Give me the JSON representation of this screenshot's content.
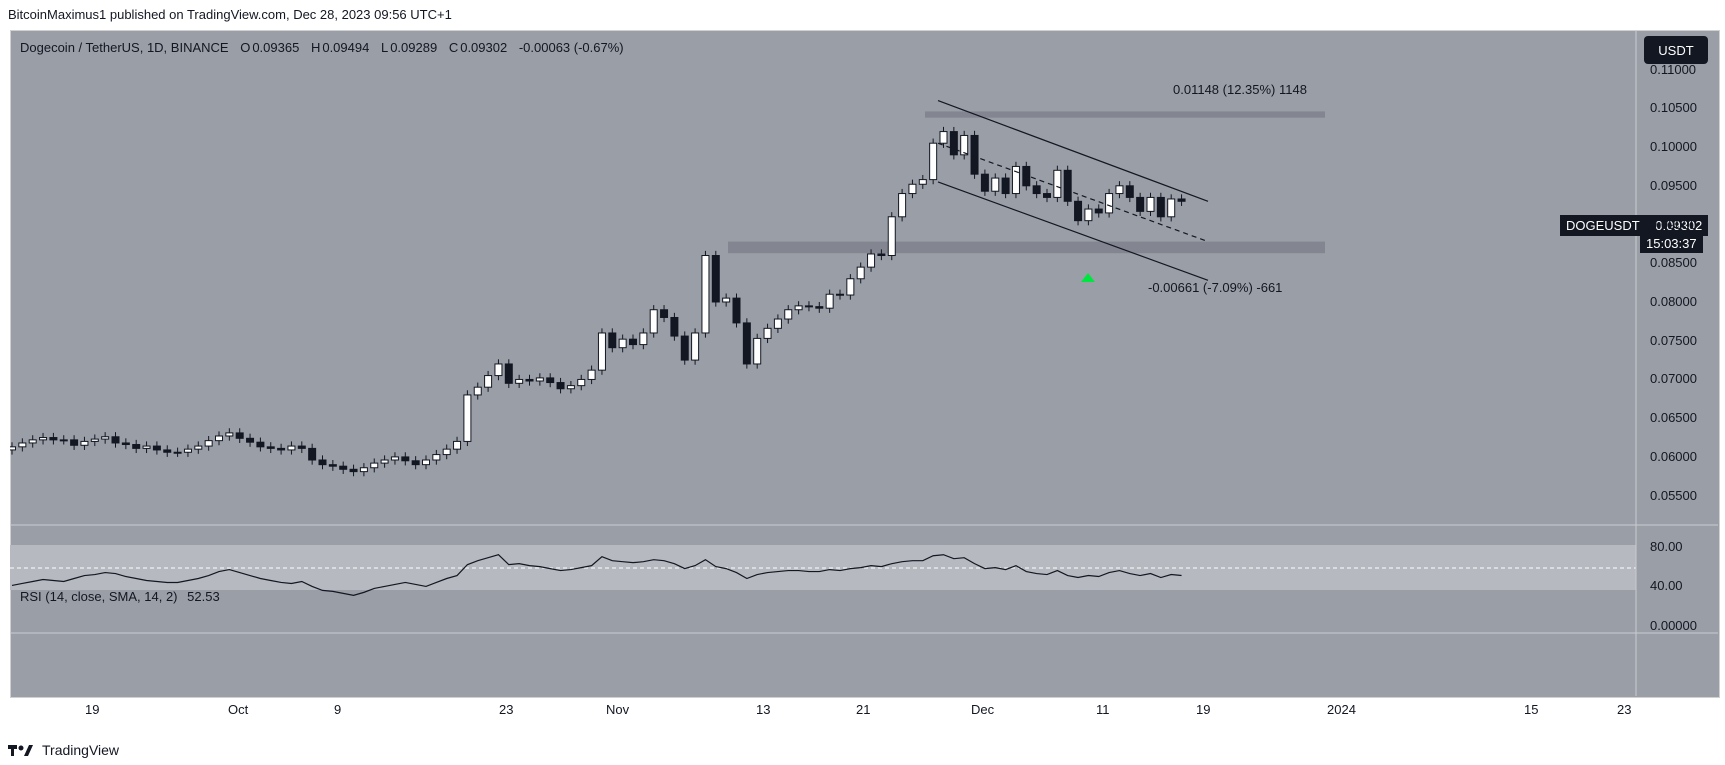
{
  "publisher_line": "BitcoinMaximus1 published on TradingView.com, Dec 28, 2023 09:56 UTC+1",
  "legend": {
    "title": "Dogecoin / TetherUS, 1D, BINANCE",
    "o_label": "O",
    "o": "0.09365",
    "h_label": "H",
    "h": "0.09494",
    "l_label": "L",
    "l": "0.09289",
    "c_label": "C",
    "c": "0.09302",
    "change": "-0.00063 (-0.67%)"
  },
  "currency_button": "USDT",
  "price_tag": {
    "symbol": "DOGEUSDT",
    "price": "0.09302",
    "countdown": "15:03:37"
  },
  "rsi_legend": {
    "label": "RSI (14, close, SMA, 14, 2)",
    "value": "52.53"
  },
  "footer": {
    "brand": "TradingView"
  },
  "annotations": {
    "upper_measure": "0.01148 (12.35%) 1148",
    "lower_measure": "-0.00661 (-7.09%) -661"
  },
  "colors": {
    "background": "#9a9ea6",
    "up_candle": "#ffffff",
    "down_candle": "#131722",
    "zone": "#838690",
    "arrow": "#00e640",
    "rsi_band": "#b6b9bf"
  },
  "chart_data": [
    {
      "type": "candlestick",
      "title": "Dogecoin / TetherUS, 1D, BINANCE",
      "x_ticks": [
        "19",
        "Oct",
        "9",
        "23",
        "Nov",
        "13",
        "21",
        "Dec",
        "11",
        "19",
        "2024",
        "15",
        "23"
      ],
      "y_ticks": [
        "0.11000",
        "0.10500",
        "0.10000",
        "0.09500",
        "0.09000",
        "0.08500",
        "0.08000",
        "0.07500",
        "0.07000",
        "0.06500",
        "0.06000",
        "0.05500"
      ],
      "y_range": [
        0.0525,
        0.1115
      ],
      "close": [
        0.0613,
        0.0618,
        0.0622,
        0.0625,
        0.0622,
        0.0622,
        0.0615,
        0.062,
        0.0623,
        0.0626,
        0.0618,
        0.0616,
        0.0611,
        0.0614,
        0.0609,
        0.0606,
        0.0606,
        0.061,
        0.0614,
        0.0621,
        0.0627,
        0.0631,
        0.0624,
        0.0619,
        0.0613,
        0.0611,
        0.0609,
        0.0614,
        0.0611,
        0.0596,
        0.059,
        0.0588,
        0.0584,
        0.0581,
        0.0586,
        0.0592,
        0.0596,
        0.06,
        0.0595,
        0.059,
        0.0596,
        0.0603,
        0.061,
        0.062,
        0.068,
        0.069,
        0.0705,
        0.072,
        0.0695,
        0.07,
        0.0698,
        0.0702,
        0.0696,
        0.0688,
        0.0692,
        0.07,
        0.0712,
        0.076,
        0.0741,
        0.0752,
        0.0745,
        0.076,
        0.079,
        0.078,
        0.0756,
        0.0725,
        0.076,
        0.086,
        0.08,
        0.0805,
        0.0773,
        0.072,
        0.0753,
        0.0766,
        0.0778,
        0.079,
        0.0795,
        0.0794,
        0.0792,
        0.081,
        0.0809,
        0.083,
        0.0845,
        0.0862,
        0.086,
        0.091,
        0.094,
        0.0952,
        0.0958,
        0.1005,
        0.102,
        0.099,
        0.1015,
        0.0965,
        0.0943,
        0.096,
        0.094,
        0.0975,
        0.095,
        0.094,
        0.0935,
        0.097,
        0.093,
        0.0905,
        0.092,
        0.0915,
        0.094,
        0.095,
        0.0935,
        0.0917,
        0.0935,
        0.091,
        0.0933,
        0.093
      ]
    },
    {
      "type": "line",
      "title": "RSI (14, close, SMA, 14, 2)",
      "y_ticks": [
        "80.00",
        "40.00",
        "0.00000"
      ],
      "y_range": [
        -5,
        100
      ],
      "band": [
        30,
        70
      ],
      "midline": 50,
      "values": [
        41,
        43,
        45,
        47,
        46,
        45,
        48,
        51,
        52,
        54,
        53,
        50,
        48,
        46,
        45,
        44,
        44,
        46,
        48,
        51,
        55,
        57,
        54,
        51,
        48,
        46,
        44,
        43,
        45,
        40,
        36,
        35,
        33,
        31,
        34,
        38,
        40,
        42,
        44,
        42,
        40,
        44,
        48,
        51,
        62,
        66,
        69,
        72,
        62,
        63,
        61,
        60,
        58,
        56,
        57,
        59,
        61,
        70,
        66,
        65,
        64,
        65,
        67,
        66,
        63,
        58,
        61,
        67,
        60,
        58,
        54,
        48,
        52,
        54,
        55,
        56,
        56,
        55,
        55,
        57,
        56,
        58,
        59,
        61,
        60,
        63,
        65,
        66,
        66,
        71,
        72,
        68,
        69,
        63,
        58,
        59,
        57,
        61,
        55,
        53,
        52,
        56,
        51,
        49,
        51,
        50,
        54,
        56,
        53,
        51,
        53,
        49,
        52,
        51
      ]
    }
  ]
}
